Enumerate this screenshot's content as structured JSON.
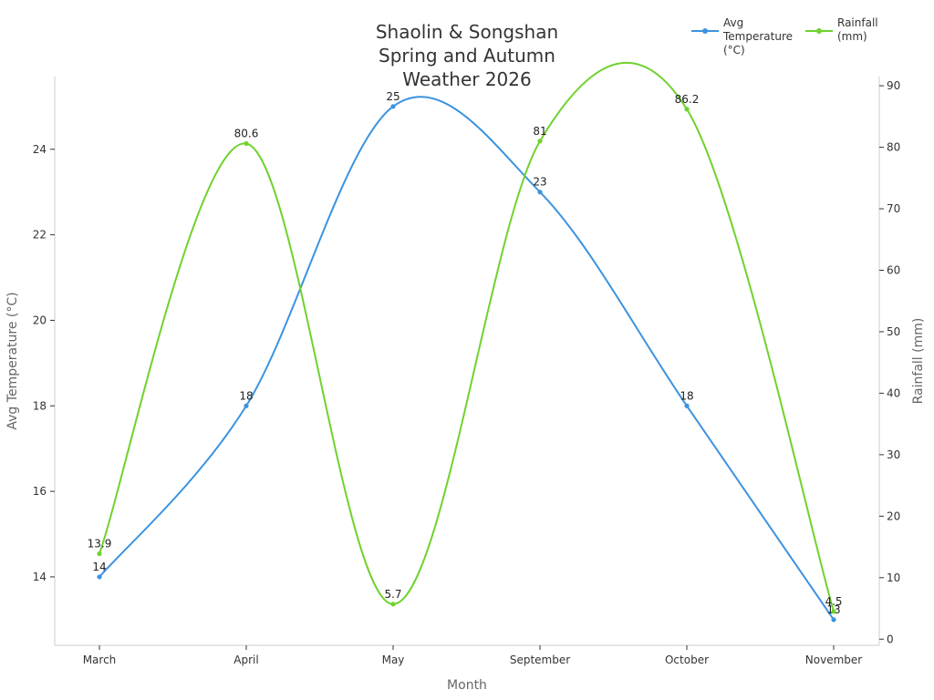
{
  "chart_data": {
    "type": "line",
    "title_lines": [
      "Shaolin & Songshan",
      "Spring and Autumn",
      "Weather 2026"
    ],
    "xlabel": "Month",
    "categories": [
      "March",
      "April",
      "May",
      "September",
      "October",
      "November"
    ],
    "y_left": {
      "label": "Avg Temperature (°C)",
      "ticks": [
        "14",
        "16",
        "18",
        "20",
        "22",
        "24"
      ],
      "range": [
        12.4,
        25.7
      ]
    },
    "y_right": {
      "label": "Rainfall (mm)",
      "ticks": [
        "0",
        "10",
        "20",
        "30",
        "40",
        "50",
        "60",
        "70",
        "80",
        "90"
      ],
      "range": [
        -1,
        91.5
      ]
    },
    "series": [
      {
        "name": "Avg Temperature (°C)",
        "legend_lines": [
          "Avg",
          "Temperature",
          "(°C)"
        ],
        "axis": "left",
        "color": "#3b93e0",
        "values": [
          14,
          18,
          25,
          23,
          18,
          13
        ],
        "labels": [
          "14",
          "18",
          "25",
          "23",
          "18",
          "13"
        ]
      },
      {
        "name": "Rainfall (mm)",
        "legend_lines": [
          "Rainfall",
          "(mm)"
        ],
        "axis": "right",
        "color": "#6fd22e",
        "values": [
          13.9,
          80.6,
          5.7,
          81,
          86.2,
          4.5
        ],
        "labels": [
          "13.9",
          "80.6",
          "5.7",
          "81",
          "86.2",
          "4.5"
        ]
      }
    ],
    "grid": false,
    "legend_position": "top-right"
  }
}
